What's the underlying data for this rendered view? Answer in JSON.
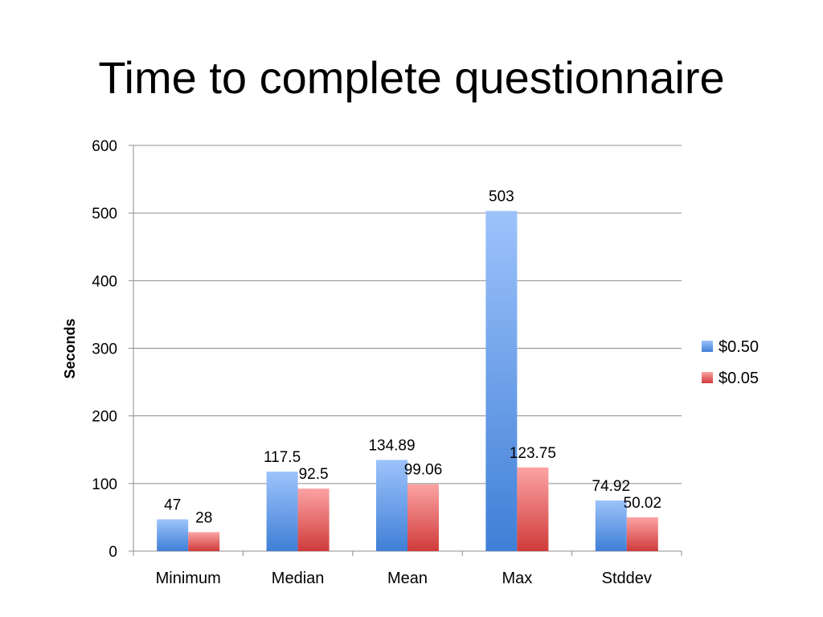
{
  "title": "Time to complete questionnaire",
  "chart_data": {
    "type": "bar",
    "title": "Time to complete questionnaire",
    "xlabel": "",
    "ylabel": "Seconds",
    "ylim": [
      0,
      600
    ],
    "ytick_step": 100,
    "grid": true,
    "legend_position": "right",
    "categories": [
      "Minimum",
      "Median",
      "Mean",
      "Max",
      "Stddev"
    ],
    "series": [
      {
        "name": "$0.50",
        "values": [
          47,
          117.5,
          134.89,
          503,
          74.92
        ],
        "labels": [
          "47",
          "117.5",
          "134.89",
          "503",
          "74.92"
        ],
        "color_top": "#9dc3fb",
        "color_bottom": "#3f7fd6"
      },
      {
        "name": "$0.05",
        "values": [
          28,
          92.5,
          99.06,
          123.75,
          50.02
        ],
        "labels": [
          "28",
          "92.5",
          "99.06",
          "123.75",
          "50.02"
        ],
        "color_top": "#fca3a3",
        "color_bottom": "#d03b3b"
      }
    ]
  }
}
